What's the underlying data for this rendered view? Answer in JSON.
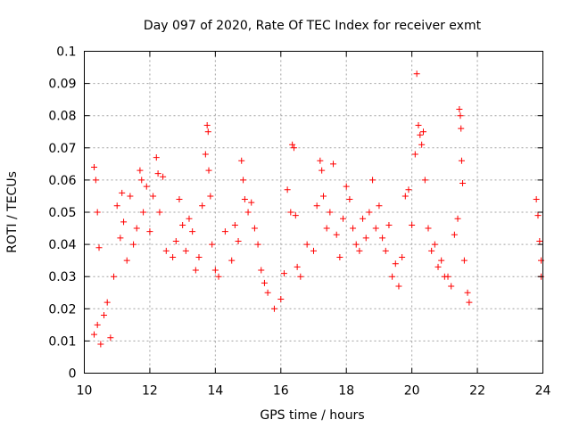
{
  "chart_data": {
    "type": "scatter",
    "title": "Day 097 of 2020, Rate Of TEC Index for receiver exmt",
    "xlabel": "GPS time / hours",
    "ylabel": "ROTI / TECUs",
    "xlim": [
      10,
      24
    ],
    "ylim": [
      0,
      0.1
    ],
    "xticks": [
      10,
      12,
      14,
      16,
      18,
      20,
      22,
      24
    ],
    "xtick_labels": [
      "10",
      "12",
      "14",
      "16",
      "18",
      "20",
      "22",
      "24"
    ],
    "yticks": [
      0,
      0.01,
      0.02,
      0.03,
      0.04,
      0.05,
      0.06,
      0.07,
      0.08,
      0.09,
      0.1
    ],
    "ytick_labels": [
      "0",
      "0.01",
      "0.02",
      "0.03",
      "0.04",
      "0.05",
      "0.06",
      "0.07",
      "0.08",
      "0.09",
      "0.1"
    ],
    "grid": true,
    "marker": "+",
    "color": "#ff0000",
    "series": [
      {
        "name": "ROTI",
        "points": [
          [
            10.3,
            0.064
          ],
          [
            10.35,
            0.06
          ],
          [
            10.4,
            0.05
          ],
          [
            10.45,
            0.039
          ],
          [
            10.3,
            0.012
          ],
          [
            10.4,
            0.015
          ],
          [
            10.5,
            0.009
          ],
          [
            10.6,
            0.018
          ],
          [
            10.7,
            0.022
          ],
          [
            10.8,
            0.011
          ],
          [
            10.9,
            0.03
          ],
          [
            11.0,
            0.052
          ],
          [
            11.1,
            0.042
          ],
          [
            11.15,
            0.056
          ],
          [
            11.2,
            0.047
          ],
          [
            11.3,
            0.035
          ],
          [
            11.4,
            0.055
          ],
          [
            11.5,
            0.04
          ],
          [
            11.6,
            0.045
          ],
          [
            11.7,
            0.063
          ],
          [
            11.75,
            0.06
          ],
          [
            11.8,
            0.05
          ],
          [
            11.9,
            0.058
          ],
          [
            12.0,
            0.044
          ],
          [
            12.1,
            0.055
          ],
          [
            12.2,
            0.067
          ],
          [
            12.25,
            0.062
          ],
          [
            12.3,
            0.05
          ],
          [
            12.4,
            0.061
          ],
          [
            12.5,
            0.038
          ],
          [
            12.7,
            0.036
          ],
          [
            12.8,
            0.041
          ],
          [
            12.9,
            0.054
          ],
          [
            13.0,
            0.046
          ],
          [
            13.1,
            0.038
          ],
          [
            13.2,
            0.048
          ],
          [
            13.3,
            0.044
          ],
          [
            13.4,
            0.032
          ],
          [
            13.5,
            0.036
          ],
          [
            13.6,
            0.052
          ],
          [
            13.7,
            0.068
          ],
          [
            13.75,
            0.077
          ],
          [
            13.78,
            0.075
          ],
          [
            13.8,
            0.063
          ],
          [
            13.85,
            0.055
          ],
          [
            13.9,
            0.04
          ],
          [
            14.0,
            0.032
          ],
          [
            14.1,
            0.03
          ],
          [
            14.3,
            0.044
          ],
          [
            14.5,
            0.035
          ],
          [
            14.6,
            0.046
          ],
          [
            14.7,
            0.041
          ],
          [
            14.8,
            0.066
          ],
          [
            14.85,
            0.06
          ],
          [
            14.9,
            0.054
          ],
          [
            15.0,
            0.05
          ],
          [
            15.1,
            0.053
          ],
          [
            15.2,
            0.045
          ],
          [
            15.3,
            0.04
          ],
          [
            15.4,
            0.032
          ],
          [
            15.5,
            0.028
          ],
          [
            15.6,
            0.025
          ],
          [
            15.8,
            0.02
          ],
          [
            16.0,
            0.023
          ],
          [
            16.1,
            0.031
          ],
          [
            16.2,
            0.057
          ],
          [
            16.3,
            0.05
          ],
          [
            16.35,
            0.071
          ],
          [
            16.4,
            0.07
          ],
          [
            16.45,
            0.049
          ],
          [
            16.5,
            0.033
          ],
          [
            16.6,
            0.03
          ],
          [
            16.8,
            0.04
          ],
          [
            17.0,
            0.038
          ],
          [
            17.1,
            0.052
          ],
          [
            17.2,
            0.066
          ],
          [
            17.25,
            0.063
          ],
          [
            17.3,
            0.055
          ],
          [
            17.4,
            0.045
          ],
          [
            17.5,
            0.05
          ],
          [
            17.6,
            0.065
          ],
          [
            17.7,
            0.043
          ],
          [
            17.8,
            0.036
          ],
          [
            17.9,
            0.048
          ],
          [
            18.0,
            0.058
          ],
          [
            18.1,
            0.054
          ],
          [
            18.2,
            0.045
          ],
          [
            18.3,
            0.04
          ],
          [
            18.4,
            0.038
          ],
          [
            18.5,
            0.048
          ],
          [
            18.6,
            0.042
          ],
          [
            18.7,
            0.05
          ],
          [
            18.8,
            0.06
          ],
          [
            18.9,
            0.045
          ],
          [
            19.0,
            0.052
          ],
          [
            19.1,
            0.042
          ],
          [
            19.2,
            0.038
          ],
          [
            19.3,
            0.046
          ],
          [
            19.4,
            0.03
          ],
          [
            19.5,
            0.034
          ],
          [
            19.6,
            0.027
          ],
          [
            19.7,
            0.036
          ],
          [
            19.8,
            0.055
          ],
          [
            19.9,
            0.057
          ],
          [
            20.0,
            0.046
          ],
          [
            20.1,
            0.068
          ],
          [
            20.15,
            0.093
          ],
          [
            20.2,
            0.077
          ],
          [
            20.25,
            0.074
          ],
          [
            20.3,
            0.071
          ],
          [
            20.35,
            0.075
          ],
          [
            20.4,
            0.06
          ],
          [
            20.5,
            0.045
          ],
          [
            20.6,
            0.038
          ],
          [
            20.7,
            0.04
          ],
          [
            20.8,
            0.033
          ],
          [
            20.9,
            0.035
          ],
          [
            21.0,
            0.03
          ],
          [
            21.1,
            0.03
          ],
          [
            21.2,
            0.027
          ],
          [
            21.3,
            0.043
          ],
          [
            21.4,
            0.048
          ],
          [
            21.45,
            0.082
          ],
          [
            21.48,
            0.08
          ],
          [
            21.5,
            0.076
          ],
          [
            21.52,
            0.066
          ],
          [
            21.55,
            0.059
          ],
          [
            21.6,
            0.035
          ],
          [
            21.7,
            0.025
          ],
          [
            21.75,
            0.022
          ],
          [
            23.8,
            0.054
          ],
          [
            23.85,
            0.049
          ],
          [
            23.9,
            0.041
          ],
          [
            23.95,
            0.035
          ],
          [
            24.0,
            0.03
          ]
        ]
      }
    ]
  }
}
